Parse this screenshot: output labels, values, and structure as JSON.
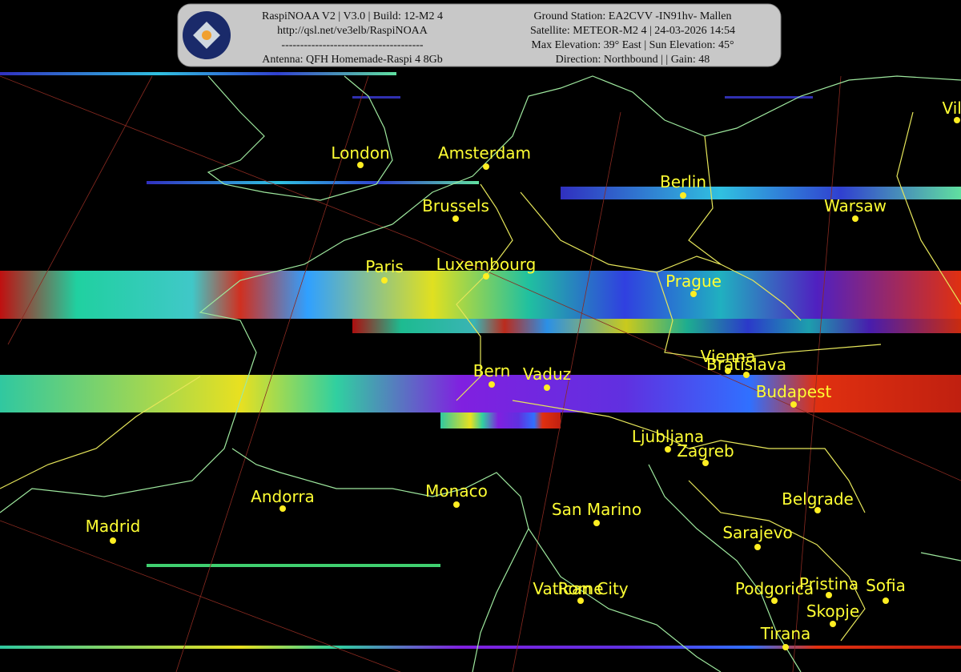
{
  "header": {
    "left": [
      "RaspiNOAA V2 | V3.0 | Build: 12-M2 4",
      "http://qsl.net/ve3elb/RaspiNOAA",
      "--------------------------------------",
      "Antenna: QFH Homemade-Raspi 4 8Gb"
    ],
    "right": [
      "Ground Station: EA2CVV -IN91hv- Mallen",
      "Satellite: METEOR-M2 4 | 24-03-2026 14:54",
      "Max Elevation: 39° East | Sun Elevation: 45°",
      "Direction: Northbound | | Gain: 48"
    ]
  },
  "cities": [
    {
      "label": "London"
    },
    {
      "label": "Amsterdam"
    },
    {
      "label": "Brussels"
    },
    {
      "label": "Paris"
    },
    {
      "label": "Luxembourg"
    },
    {
      "label": "Berlin"
    },
    {
      "label": "Warsaw"
    },
    {
      "label": "Prague"
    },
    {
      "label": "Vienna"
    },
    {
      "label": "Bratislava"
    },
    {
      "label": "Budapest"
    },
    {
      "label": "Bern"
    },
    {
      "label": "Vaduz"
    },
    {
      "label": "Ljubljana"
    },
    {
      "label": "Zagreb"
    },
    {
      "label": "Monaco"
    },
    {
      "label": "Andorra"
    },
    {
      "label": "Madrid"
    },
    {
      "label": "San Marino"
    },
    {
      "label": "Belgrade"
    },
    {
      "label": "Sarajevo"
    },
    {
      "label": "Vatican City"
    },
    {
      "label": "Rome"
    },
    {
      "label": "Podgorica"
    },
    {
      "label": "Pristina"
    },
    {
      "label": "Sofia"
    },
    {
      "label": "Skopje"
    },
    {
      "label": "Tirana"
    },
    {
      "label": "Viln"
    }
  ]
}
